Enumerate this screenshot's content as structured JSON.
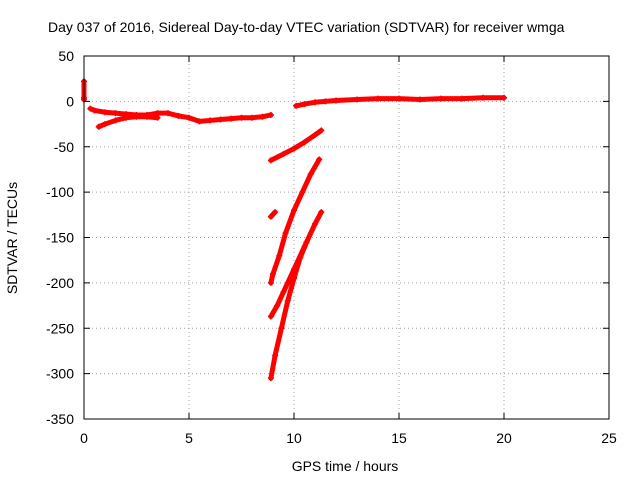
{
  "chart_data": {
    "type": "scatter",
    "title": "Day 037 of 2016, Sidereal Day-to-day VTEC variation (SDTVAR) for receiver wmga",
    "xlabel": "GPS time / hours",
    "ylabel": "SDTVAR / TECUs",
    "xlim": [
      0,
      25
    ],
    "ylim": [
      -350,
      50
    ],
    "xticks": [
      0,
      5,
      10,
      15,
      20,
      25
    ],
    "yticks": [
      50,
      0,
      -50,
      -100,
      -150,
      -200,
      -250,
      -300,
      -350
    ],
    "grid": true,
    "legend": "none",
    "series_color": "#ff0000",
    "series": [
      {
        "points": [
          [
            0.0,
            22
          ],
          [
            0.0,
            4
          ],
          [
            0.0,
            2
          ]
        ]
      },
      {
        "points": [
          [
            0.3,
            -8
          ],
          [
            0.5,
            -10
          ],
          [
            1.0,
            -12
          ],
          [
            1.5,
            -13
          ],
          [
            2.0,
            -14
          ],
          [
            2.5,
            -15
          ],
          [
            3.0,
            -15
          ],
          [
            3.5,
            -13
          ],
          [
            4.0,
            -13
          ],
          [
            4.5,
            -16
          ],
          [
            5.0,
            -18
          ],
          [
            5.5,
            -22
          ],
          [
            6.0,
            -21
          ],
          [
            6.5,
            -20
          ],
          [
            7.0,
            -19
          ],
          [
            7.5,
            -18
          ],
          [
            8.0,
            -18
          ],
          [
            8.5,
            -17
          ],
          [
            8.9,
            -15
          ]
        ]
      },
      {
        "points": [
          [
            0.7,
            -28
          ],
          [
            1.0,
            -25
          ],
          [
            1.5,
            -21
          ],
          [
            2.0,
            -18
          ],
          [
            2.5,
            -17
          ],
          [
            3.0,
            -17
          ],
          [
            3.5,
            -18
          ]
        ]
      },
      {
        "points": [
          [
            10.1,
            -5
          ],
          [
            10.5,
            -3
          ],
          [
            11.0,
            -1
          ],
          [
            11.5,
            0
          ],
          [
            12.0,
            1
          ],
          [
            13.0,
            2
          ],
          [
            14.0,
            3
          ],
          [
            15.0,
            3
          ],
          [
            16.0,
            2
          ],
          [
            17.0,
            3
          ],
          [
            18.0,
            3
          ],
          [
            19.0,
            4
          ],
          [
            20.0,
            4
          ]
        ]
      },
      {
        "points": [
          [
            8.9,
            -65
          ],
          [
            9.5,
            -58
          ],
          [
            10.0,
            -52
          ],
          [
            10.5,
            -45
          ],
          [
            11.0,
            -37
          ],
          [
            11.3,
            -32
          ]
        ]
      },
      {
        "points": [
          [
            8.9,
            -127
          ],
          [
            9.1,
            -122
          ]
        ]
      },
      {
        "points": [
          [
            8.9,
            -200
          ],
          [
            9.0,
            -190
          ],
          [
            9.3,
            -170
          ],
          [
            9.6,
            -145
          ],
          [
            10.0,
            -120
          ],
          [
            10.4,
            -100
          ],
          [
            10.8,
            -80
          ],
          [
            11.2,
            -64
          ]
        ]
      },
      {
        "points": [
          [
            8.9,
            -237
          ],
          [
            9.2,
            -225
          ],
          [
            9.5,
            -210
          ],
          [
            10.0,
            -185
          ],
          [
            10.5,
            -160
          ],
          [
            11.0,
            -135
          ],
          [
            11.3,
            -122
          ]
        ]
      },
      {
        "points": [
          [
            8.9,
            -305
          ],
          [
            9.1,
            -280
          ],
          [
            9.4,
            -250
          ],
          [
            9.7,
            -220
          ],
          [
            10.0,
            -195
          ],
          [
            10.3,
            -172
          ],
          [
            10.6,
            -155
          ]
        ]
      }
    ]
  }
}
